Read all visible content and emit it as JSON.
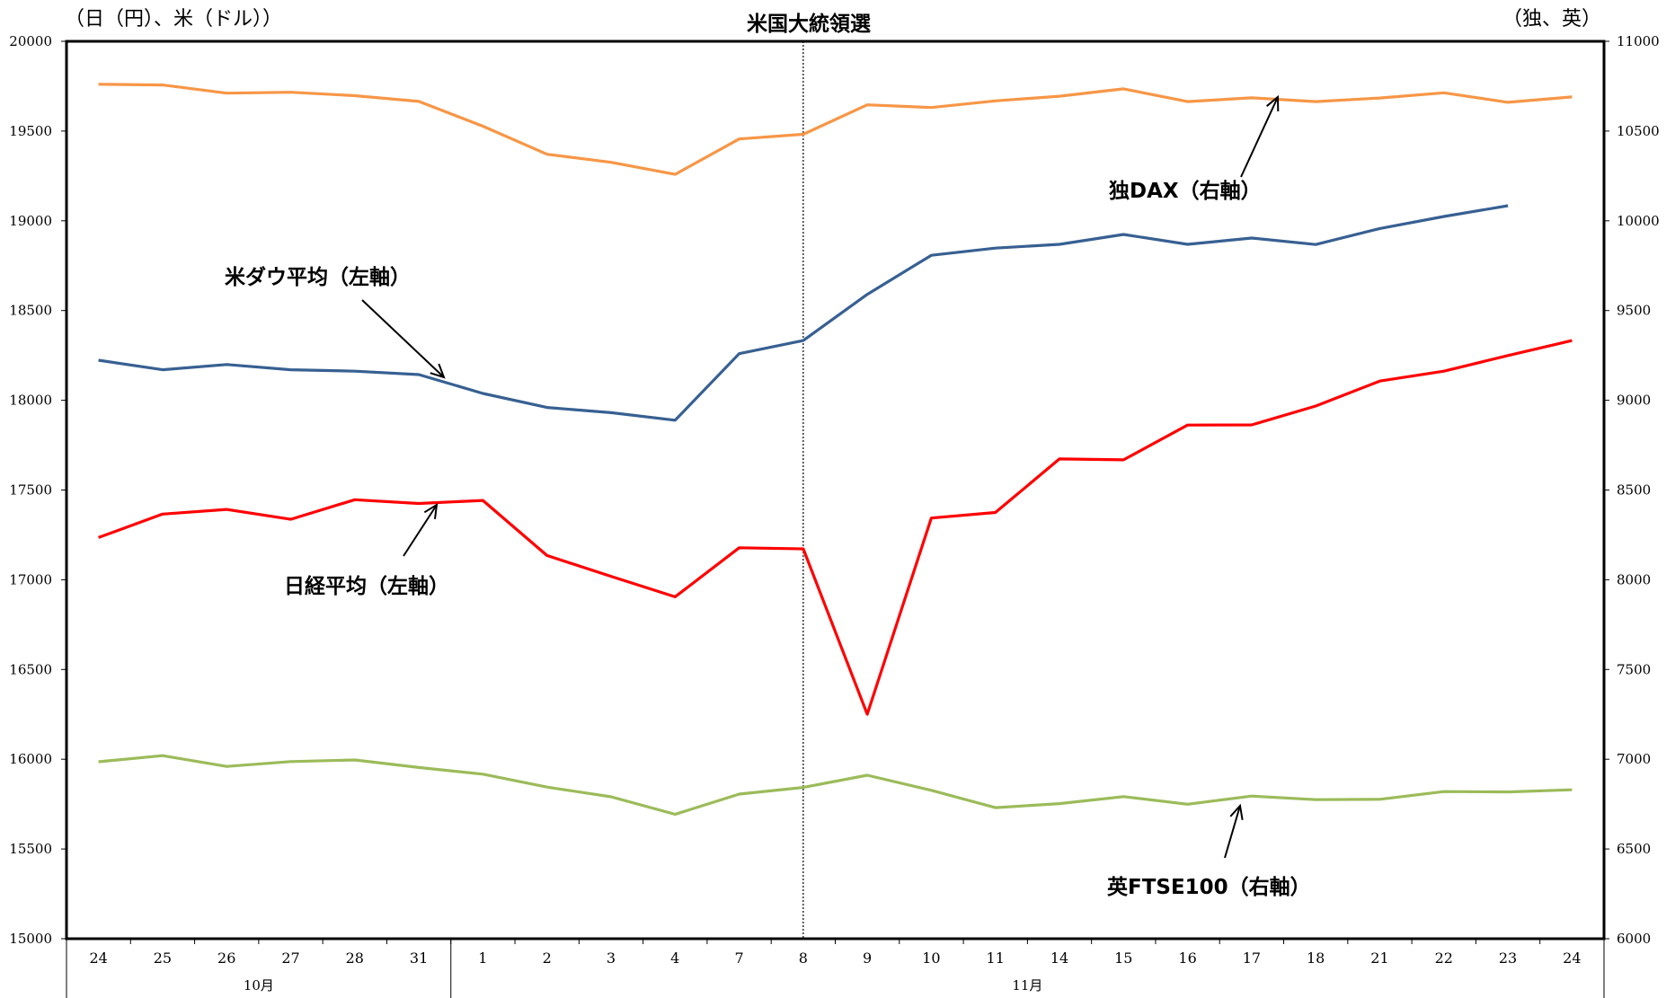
{
  "chart_data": {
    "type": "line",
    "title": "米国大統領選",
    "left_axis_label": "（日（円）、米（ドル））",
    "right_axis_label": "（独、英）",
    "left_ylim": [
      15000,
      20000
    ],
    "right_ylim": [
      6000,
      11000
    ],
    "left_yticks": [
      "20000",
      "19500",
      "19000",
      "18500",
      "18000",
      "17500",
      "17000",
      "16500",
      "16000",
      "15500",
      "15000"
    ],
    "right_yticks": [
      "11000",
      "10500",
      "10000",
      "9500",
      "9000",
      "8500",
      "8000",
      "7500",
      "7000",
      "6500",
      "6000"
    ],
    "categories": [
      "24",
      "25",
      "26",
      "27",
      "28",
      "31",
      "1",
      "2",
      "3",
      "4",
      "7",
      "8",
      "9",
      "10",
      "11",
      "14",
      "15",
      "16",
      "17",
      "18",
      "21",
      "22",
      "23",
      "24"
    ],
    "months": [
      {
        "label": "10月",
        "start": 0,
        "end": 5
      },
      {
        "label": "11月",
        "start": 6,
        "end": 23
      }
    ],
    "event_index": 11,
    "grid": false,
    "series": [
      {
        "name": "独DAX（右軸）",
        "axis": "right",
        "color": "#F79646",
        "values": [
          10761,
          10757,
          10711,
          10716,
          10697,
          10665,
          10527,
          10371,
          10326,
          10259,
          10456,
          10482,
          10646,
          10631,
          10668,
          10694,
          10735,
          10664,
          10685,
          10664,
          10684,
          10713,
          10660,
          10690
        ]
      },
      {
        "name": "米ダウ平均（左軸）",
        "axis": "left",
        "color": "#376092",
        "values": [
          18223,
          18170,
          18199,
          18170,
          18162,
          18143,
          18038,
          17960,
          17931,
          17889,
          18260,
          18333,
          18590,
          18808,
          18848,
          18869,
          18924,
          18869,
          18904,
          18868,
          18957,
          19024,
          19084,
          null
        ]
      },
      {
        "name": "日経平均（左軸）",
        "axis": "left",
        "color": "#FF0000",
        "values": [
          17235,
          17366,
          17392,
          17337,
          17446,
          17425,
          17442,
          17135,
          17019,
          16905,
          17178,
          17172,
          16251,
          17344,
          17375,
          17673,
          17668,
          17862,
          17863,
          17968,
          18107,
          18162,
          18249,
          18333
        ]
      },
      {
        "name": "英FTSE100（右軸）",
        "axis": "right",
        "color": "#9BBB59",
        "values": [
          6986,
          7020,
          6960,
          6987,
          6996,
          6954,
          6917,
          6845,
          6791,
          6693,
          6806,
          6843,
          6911,
          6827,
          6730,
          6753,
          6792,
          6749,
          6795,
          6775,
          6777,
          6820,
          6818,
          6830
        ]
      }
    ],
    "annotations": [
      {
        "text": "独DAX（右軸）"
      },
      {
        "text": "米ダウ平均（左軸）"
      },
      {
        "text": "日経平均（左軸）"
      },
      {
        "text": "英FTSE100（右軸）"
      }
    ]
  }
}
